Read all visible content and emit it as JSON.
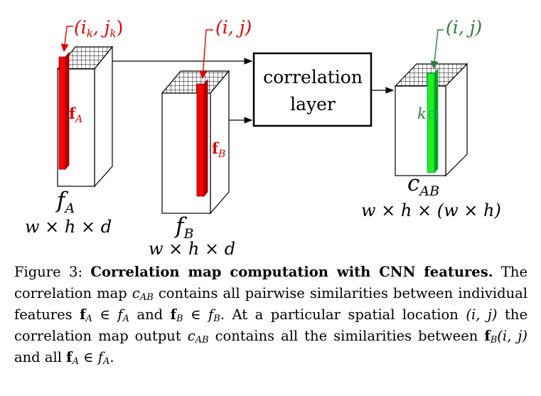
{
  "diagram": {
    "blocks": [
      {
        "id": "A",
        "name_main": "f",
        "name_sub": "A",
        "dims": "w × h × d",
        "vector_label_main": "f",
        "vector_label_sub": "A",
        "location_label": "(i",
        "location_sub": "k",
        "location_mid": ", j",
        "location_sub2": "k",
        "location_end": ")"
      },
      {
        "id": "B",
        "name_main": "f",
        "name_sub": "B",
        "dims": "w × h × d",
        "vector_label_main": "f",
        "vector_label_sub": "B",
        "location_label": "(i, j)"
      },
      {
        "id": "AB",
        "name_main": "c",
        "name_sub": "AB",
        "dims": "w × h × (w × h)",
        "vector_label_main": "k",
        "location_label": "(i, j)"
      }
    ],
    "layer": {
      "line1": "correlation",
      "line2": "layer"
    },
    "colors": {
      "feature_vector": "#ff0000",
      "correlation_vector": "#00e000",
      "location_arrow_A_B": "#ff0000",
      "location_arrow_AB": "#2e7d32"
    }
  },
  "caption": {
    "figure_label": "Figure 3:",
    "title": "Correlation map computation with CNN features.",
    "t1": "The correlation map ",
    "m1": "c",
    "m1s": "AB",
    "t2": " contains all pairwise similarities between individual features ",
    "m2": "f",
    "m2s": "A",
    "t3": " ∈ ",
    "m3": "f",
    "m3s": "A",
    "t4": " and ",
    "m4": "f",
    "m4s": "B",
    "t5": " ∈ ",
    "m5": "f",
    "m5s": "B",
    "t6": ". At a particular spatial location ",
    "m6": "(i, j)",
    "t7": " the correlation map output ",
    "m7": "c",
    "m7s": "AB",
    "t8": " contains all the similarities between ",
    "m8": "f",
    "m8s": "B",
    "m8e": "(i, j)",
    "t9": " and all ",
    "m9": "f",
    "m9s": "A",
    "t10": " ∈ ",
    "m10": "f",
    "m10s": "A",
    "t11": "."
  }
}
